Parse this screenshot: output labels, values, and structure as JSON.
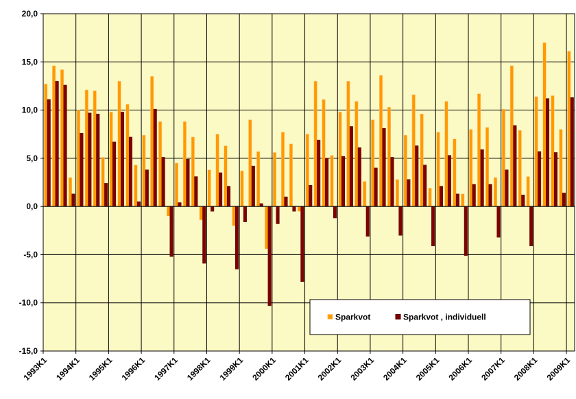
{
  "chart_data": {
    "type": "bar",
    "categories": [
      "1993K1",
      null,
      null,
      null,
      "1994K1",
      null,
      null,
      null,
      "1995K1",
      null,
      null,
      null,
      "1996K1",
      null,
      null,
      null,
      "1997K1",
      null,
      null,
      null,
      "1998K1",
      null,
      null,
      null,
      "1999K1",
      null,
      null,
      null,
      "2000K1",
      null,
      null,
      null,
      "2001K1",
      null,
      null,
      null,
      "2002K1",
      null,
      null,
      null,
      "2003K1",
      null,
      null,
      null,
      "2004K1",
      null,
      null,
      null,
      "2005K1",
      null,
      null,
      null,
      "2006K1",
      null,
      null,
      null,
      "2007K1",
      null,
      null,
      null,
      "2008K1",
      null,
      null,
      null,
      "2009K1"
    ],
    "series": [
      {
        "name": "Sparkvot",
        "color": "#ff9900",
        "values": [
          12.7,
          14.6,
          14.2,
          3.0,
          10.0,
          12.1,
          12.0,
          5.1,
          9.8,
          13.0,
          10.6,
          4.3,
          7.4,
          13.5,
          8.8,
          -1.0,
          4.5,
          8.8,
          7.2,
          -1.4,
          3.8,
          7.5,
          6.3,
          -2.0,
          3.7,
          9.0,
          5.7,
          -4.4,
          5.6,
          7.7,
          6.5,
          -0.5,
          7.5,
          13.0,
          11.1,
          5.3,
          9.8,
          13.0,
          10.9,
          2.6,
          9.0,
          13.6,
          10.3,
          2.8,
          7.4,
          11.6,
          9.6,
          1.9,
          7.7,
          10.9,
          7.0,
          1.3,
          8.0,
          11.7,
          8.2,
          3.0,
          10.1,
          14.6,
          7.9,
          3.1,
          11.4,
          17.0,
          11.5,
          8.0,
          16.1
        ]
      },
      {
        "name": "Sparkvot , individuell",
        "color": "#800000",
        "values": [
          11.1,
          13.0,
          12.6,
          1.3,
          7.6,
          9.7,
          9.6,
          2.4,
          6.7,
          9.8,
          7.2,
          0.5,
          3.8,
          10.1,
          5.1,
          -5.2,
          0.4,
          4.9,
          3.1,
          -5.9,
          -0.5,
          3.5,
          2.1,
          -6.5,
          -1.6,
          4.2,
          0.3,
          -10.3,
          -1.8,
          1.0,
          -0.5,
          -7.8,
          2.2,
          6.9,
          5.0,
          -1.2,
          5.2,
          8.3,
          6.1,
          -3.1,
          4.0,
          8.1,
          5.1,
          -3.0,
          2.8,
          6.3,
          4.3,
          -4.1,
          2.1,
          5.3,
          1.3,
          -5.1,
          2.3,
          5.9,
          2.3,
          -3.2,
          3.8,
          8.4,
          1.2,
          -4.1,
          5.7,
          11.2,
          5.6,
          1.4,
          11.3
        ]
      }
    ],
    "ylim": [
      -15,
      20
    ],
    "yticks": [
      {
        "value": -15,
        "label": "-15,0"
      },
      {
        "value": -10,
        "label": "-10,0"
      },
      {
        "value": -5,
        "label": "-5,0"
      },
      {
        "value": 0,
        "label": "0,0"
      },
      {
        "value": 5,
        "label": "5,0"
      },
      {
        "value": 10,
        "label": "10,0"
      },
      {
        "value": 15,
        "label": "15,0"
      },
      {
        "value": 20,
        "label": "20,0"
      }
    ],
    "grid": true,
    "background": "#fbf9c4",
    "legend": "lower right"
  }
}
